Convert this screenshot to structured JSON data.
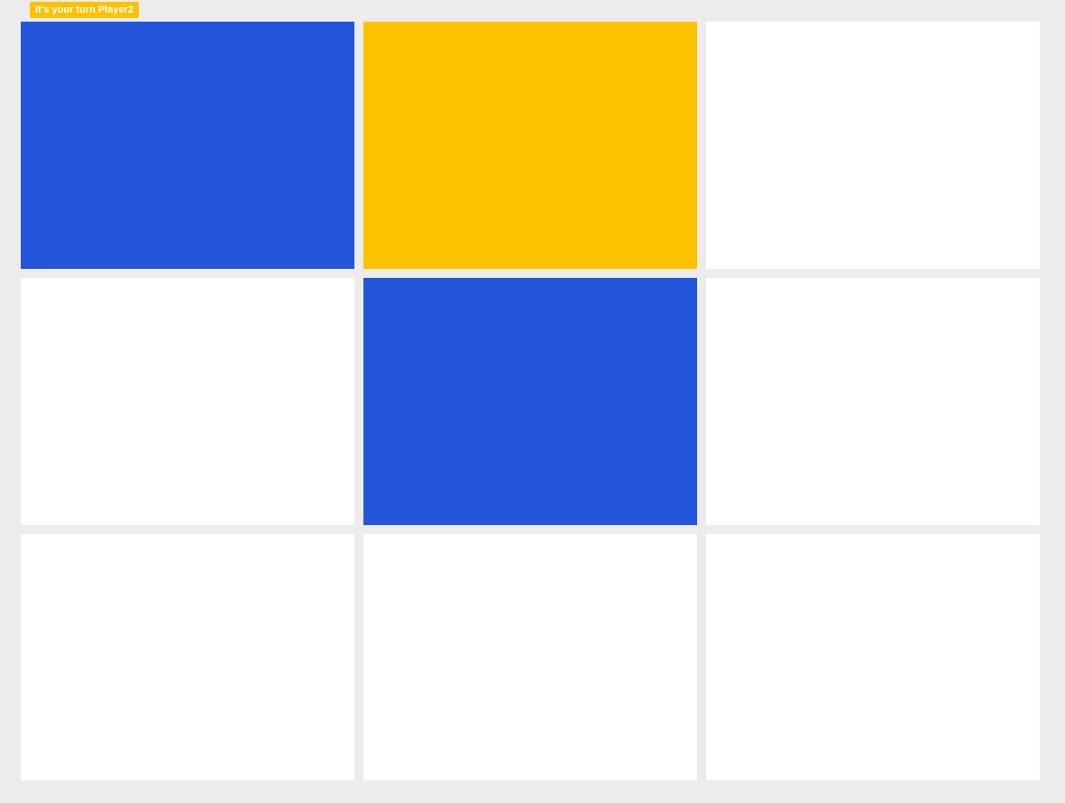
{
  "status": {
    "turn_message": "It's your turn Player2"
  },
  "colors": {
    "background": "#ececec",
    "empty": "#ffffff",
    "player1": "#2356db",
    "player2": "#fcc200"
  },
  "board": {
    "cells": [
      "player1",
      "player2",
      "empty",
      "empty",
      "player1",
      "empty",
      "empty",
      "empty",
      "empty"
    ]
  }
}
